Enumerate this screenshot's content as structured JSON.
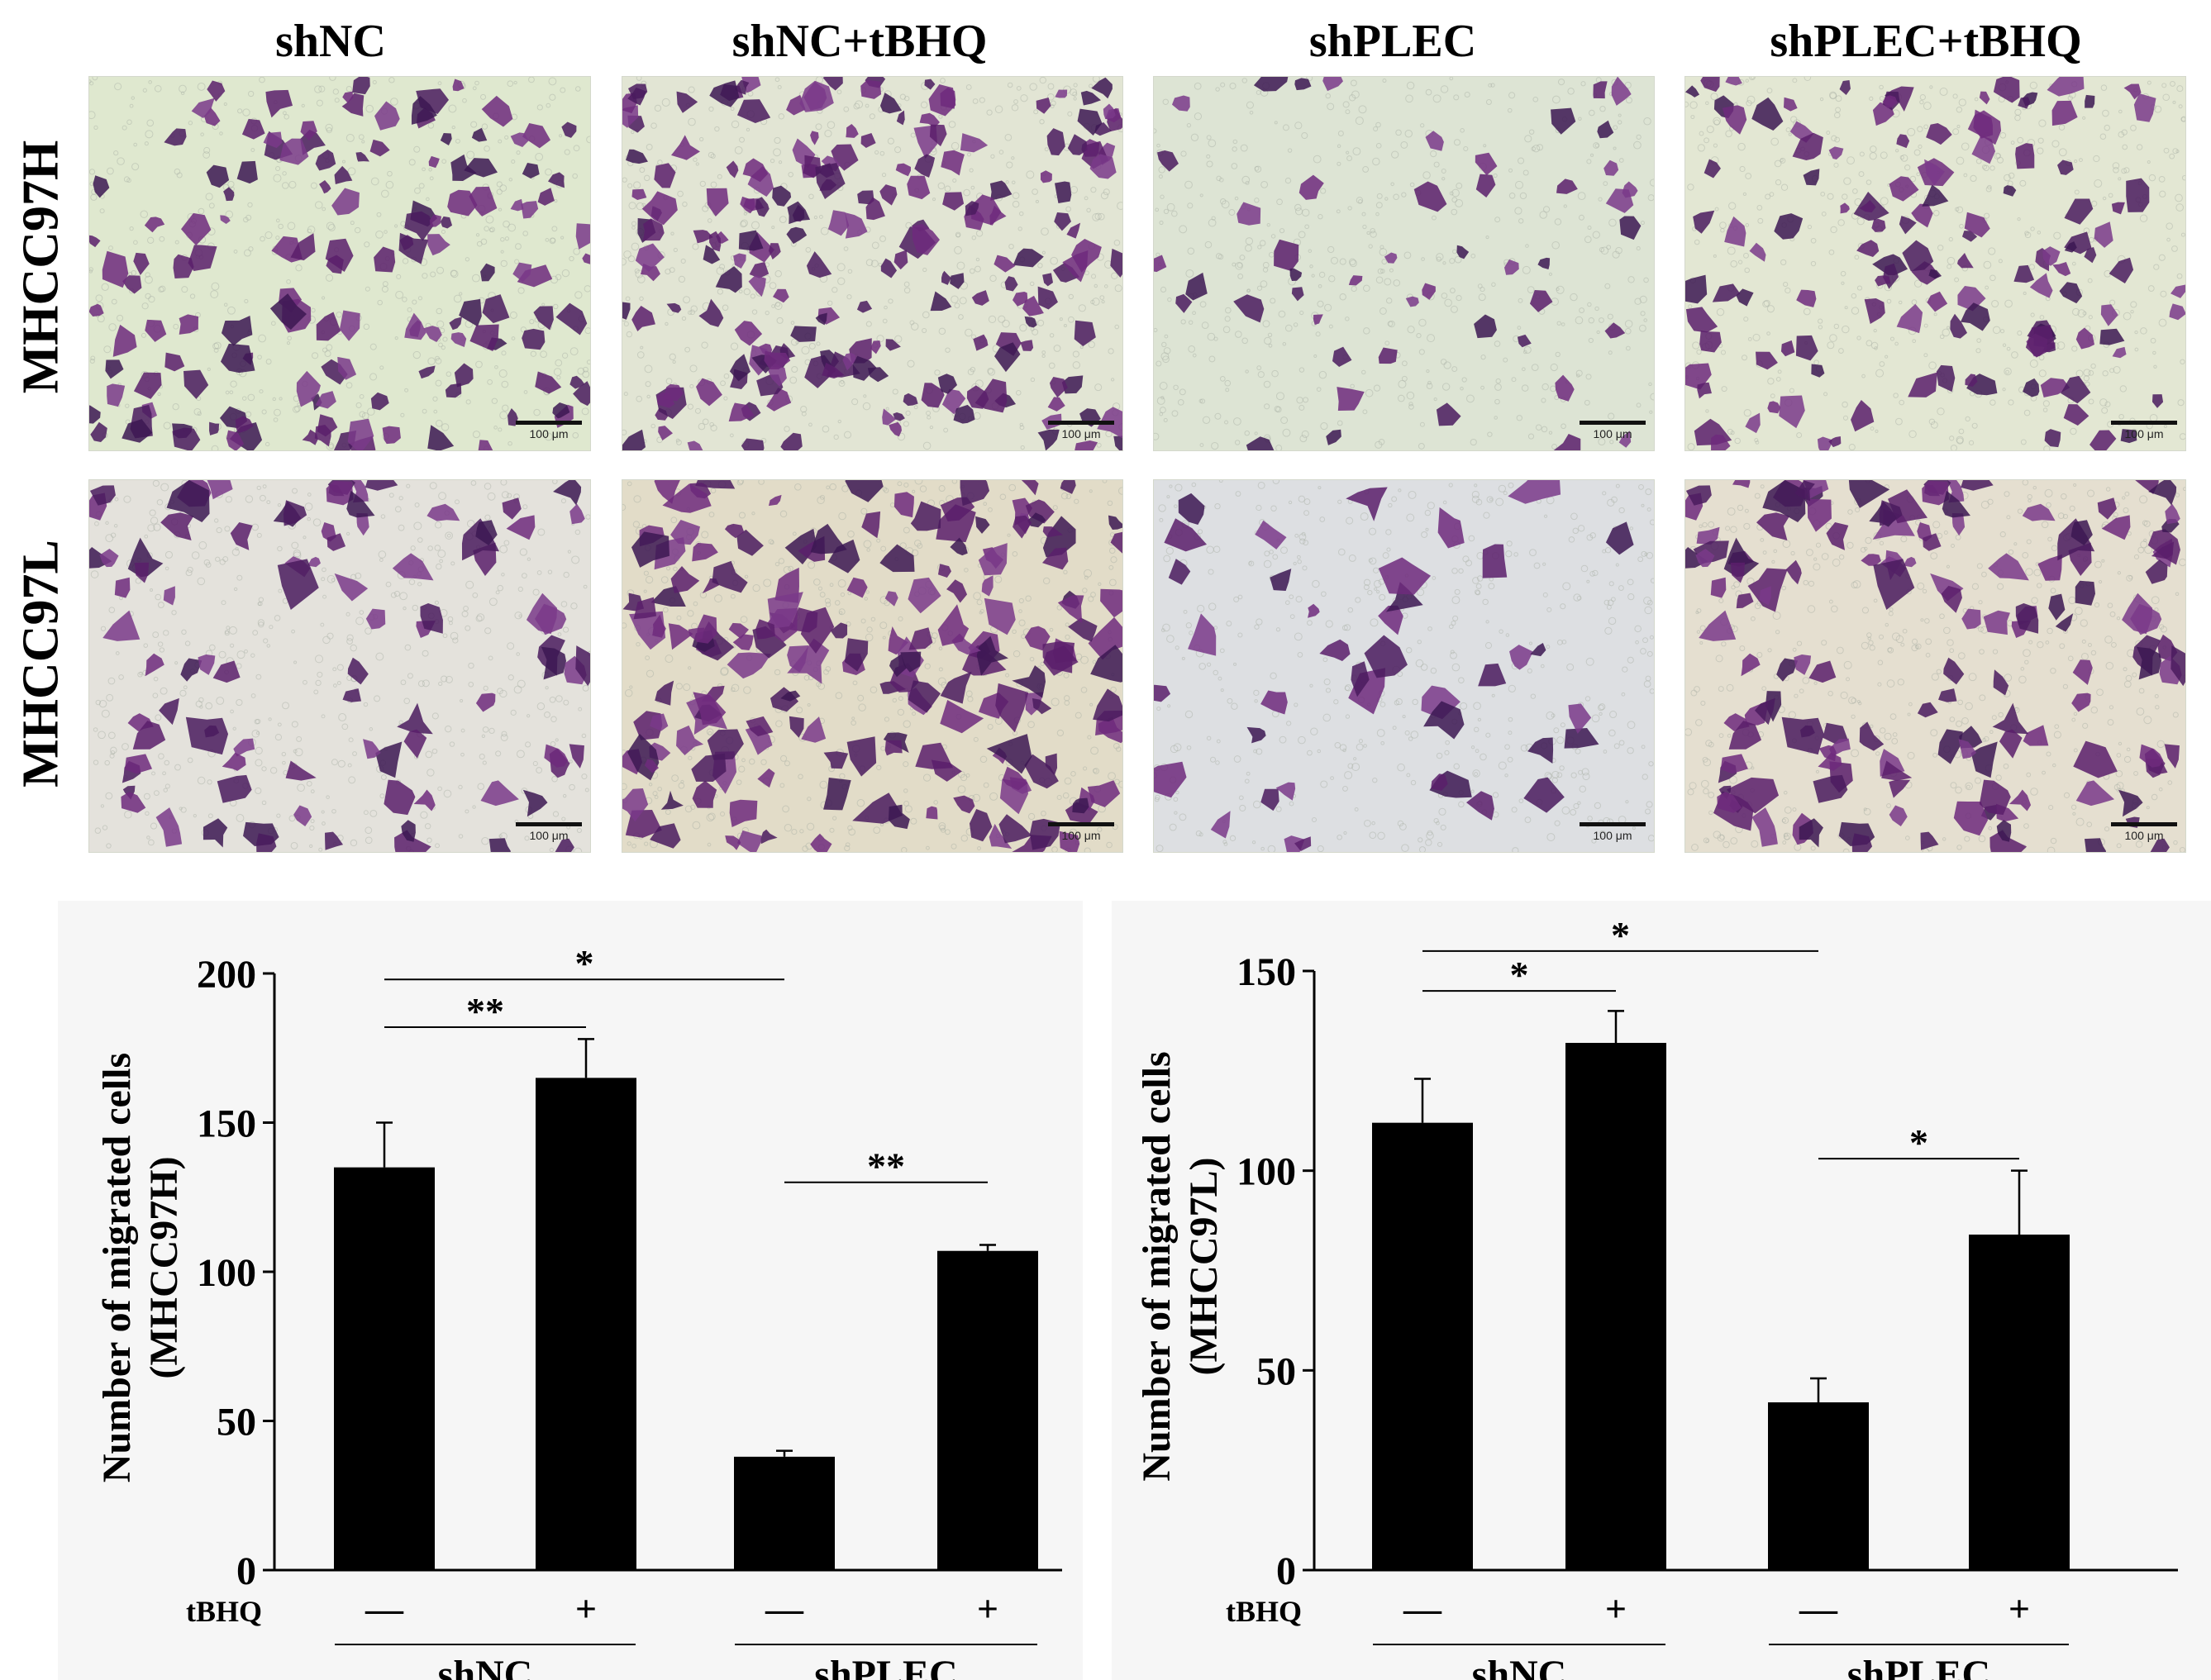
{
  "images": {
    "columns": [
      "shNC",
      "shNC+tBHQ",
      "shPLEC",
      "shPLEC+tBHQ"
    ],
    "rows": [
      "MHCC97H",
      "MHCC97L"
    ],
    "scale_bar_label": "100 μm",
    "density": [
      [
        0.62,
        0.88,
        0.22,
        0.55
      ],
      [
        0.4,
        0.78,
        0.18,
        0.64
      ]
    ]
  },
  "chart_data": [
    {
      "type": "bar",
      "ylabel_line1": "Number of migrated cells",
      "ylabel_line2": "(MHCC97H)",
      "ylim": [
        0,
        200
      ],
      "yticks": [
        "0",
        "50",
        "100",
        "150",
        "200"
      ],
      "row_label": "tBHQ",
      "categories": [
        "—",
        "+",
        "—",
        "+"
      ],
      "groups": [
        {
          "label": "shNC",
          "bars": [
            0,
            1
          ]
        },
        {
          "label": "shPLEC",
          "bars": [
            2,
            3
          ]
        }
      ],
      "values": [
        135,
        165,
        38,
        107
      ],
      "errors": [
        15,
        13,
        2,
        2
      ],
      "significance": [
        {
          "from": 0,
          "to": 1,
          "label": "**",
          "y": 182
        },
        {
          "from": 0,
          "to": 2,
          "label": "*",
          "y": 198
        },
        {
          "from": 2,
          "to": 3,
          "label": "**",
          "y": 130
        }
      ],
      "bar_color": "#000000"
    },
    {
      "type": "bar",
      "ylabel_line1": "Number of migrated cells",
      "ylabel_line2": "(MHCC97L)",
      "ylim": [
        0,
        150
      ],
      "yticks": [
        "0",
        "50",
        "100",
        "150"
      ],
      "row_label": "tBHQ",
      "categories": [
        "—",
        "+",
        "—",
        "+"
      ],
      "groups": [
        {
          "label": "shNC",
          "bars": [
            0,
            1
          ]
        },
        {
          "label": "shPLEC",
          "bars": [
            2,
            3
          ]
        }
      ],
      "values": [
        112,
        132,
        42,
        84
      ],
      "errors": [
        11,
        8,
        6,
        16
      ],
      "significance": [
        {
          "from": 0,
          "to": 1,
          "label": "*",
          "y": 145
        },
        {
          "from": 0,
          "to": 2,
          "label": "*",
          "y": 155
        },
        {
          "from": 2,
          "to": 3,
          "label": "*",
          "y": 103
        }
      ],
      "bar_color": "#000000"
    }
  ]
}
